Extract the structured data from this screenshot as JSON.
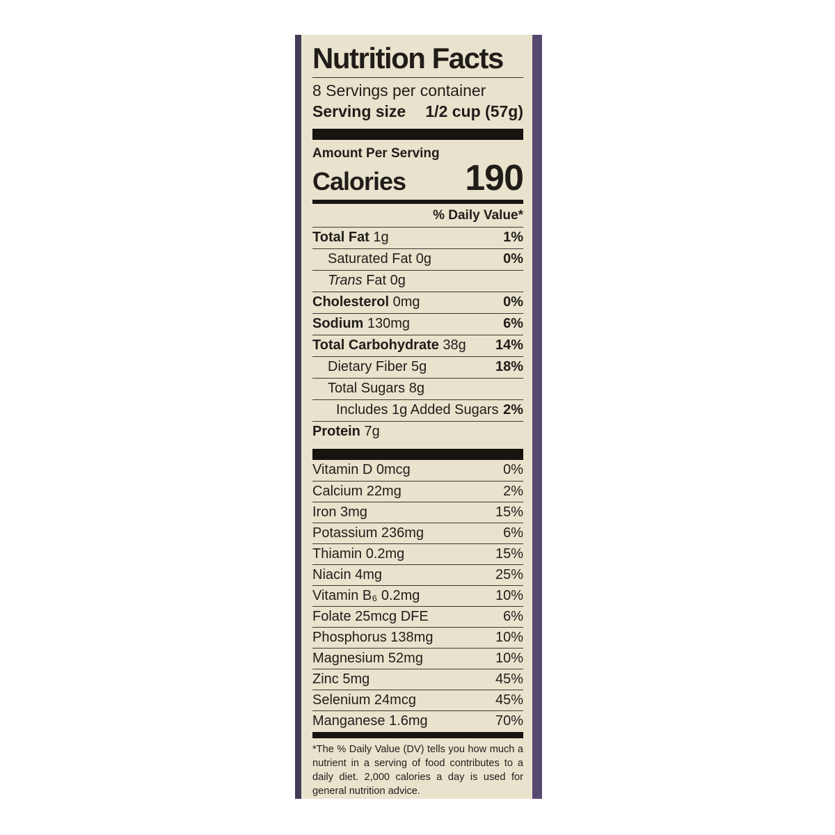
{
  "label": {
    "title": "Nutrition Facts",
    "servings_per_container": "8 Servings per container",
    "serving_size_label": "Serving size",
    "serving_size_value": "1/2 cup (57g)",
    "amount_per_serving": "Amount Per Serving",
    "calories_label": "Calories",
    "calories_value": "190",
    "daily_value_header": "% Daily Value*",
    "nutrient_rows": [
      {
        "parts": [
          {
            "t": "Total Fat",
            "b": true
          },
          {
            "t": " 1g"
          }
        ],
        "dv": "1%",
        "dv_bold": true,
        "indent": 0
      },
      {
        "parts": [
          {
            "t": "Saturated Fat 0g"
          }
        ],
        "dv": "0%",
        "dv_bold": true,
        "indent": 1
      },
      {
        "parts": [
          {
            "t": "Trans",
            "i": true
          },
          {
            "t": " Fat 0g"
          }
        ],
        "dv": "",
        "dv_bold": false,
        "indent": 1
      },
      {
        "parts": [
          {
            "t": "Cholesterol",
            "b": true
          },
          {
            "t": " 0mg"
          }
        ],
        "dv": "0%",
        "dv_bold": true,
        "indent": 0
      },
      {
        "parts": [
          {
            "t": "Sodium",
            "b": true
          },
          {
            "t": " 130mg"
          }
        ],
        "dv": "6%",
        "dv_bold": true,
        "indent": 0
      },
      {
        "parts": [
          {
            "t": "Total Carbohydrate",
            "b": true
          },
          {
            "t": " 38g"
          }
        ],
        "dv": "14%",
        "dv_bold": true,
        "indent": 0
      },
      {
        "parts": [
          {
            "t": "Dietary Fiber 5g"
          }
        ],
        "dv": "18%",
        "dv_bold": true,
        "indent": 1
      },
      {
        "parts": [
          {
            "t": "Total Sugars 8g"
          }
        ],
        "dv": "",
        "dv_bold": false,
        "indent": 1
      },
      {
        "parts": [
          {
            "t": "Includes 1g Added Sugars"
          }
        ],
        "dv": "2%",
        "dv_bold": true,
        "indent": 2
      },
      {
        "parts": [
          {
            "t": "Protein",
            "b": true
          },
          {
            "t": " 7g"
          }
        ],
        "dv": "",
        "dv_bold": false,
        "indent": 0
      }
    ],
    "micronutrient_rows": [
      {
        "name": "Vitamin D 0mcg",
        "dv": "0%"
      },
      {
        "name": "Calcium 22mg",
        "dv": "2%"
      },
      {
        "name": "Iron 3mg",
        "dv": "15%"
      },
      {
        "name": "Potassium 236mg",
        "dv": "6%"
      },
      {
        "name": "Thiamin 0.2mg",
        "dv": "15%"
      },
      {
        "name": "Niacin 4mg",
        "dv": "25%"
      },
      {
        "name": "Vitamin B₆ 0.2mg",
        "dv": "10%"
      },
      {
        "name": "Folate 25mcg DFE",
        "dv": "6%"
      },
      {
        "name": "Phosphorus 138mg",
        "dv": "10%"
      },
      {
        "name": "Magnesium 52mg",
        "dv": "10%"
      },
      {
        "name": "Zinc 5mg",
        "dv": "45%"
      },
      {
        "name": "Selenium 24mcg",
        "dv": "45%"
      },
      {
        "name": "Manganese 1.6mg",
        "dv": "70%"
      }
    ],
    "footnote": "*The % Daily Value (DV) tells you how much a nutrient in a serving of food contributes to a daily diet. 2,000 calories a day is used for general nutrition advice.",
    "colors": {
      "background": "#e9e3ce",
      "text": "#201d19",
      "strip_left": "#433a55",
      "strip_right": "#56496f",
      "bar": "#17140f"
    }
  }
}
